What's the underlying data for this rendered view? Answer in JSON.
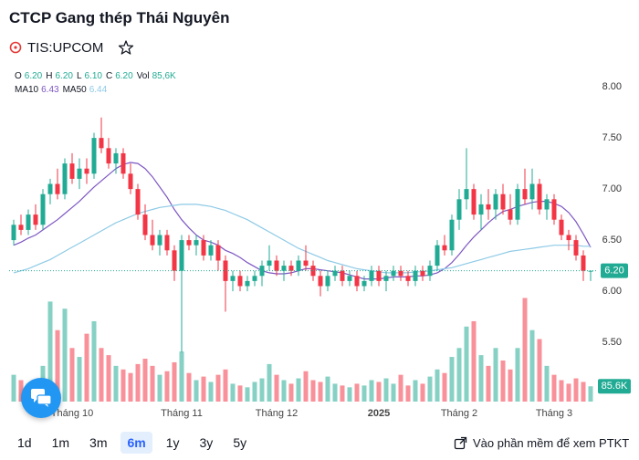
{
  "header": {
    "title": "CTCP Gang thép Thái Nguyên",
    "symbol": "TIS:UPCOM"
  },
  "chart_data": {
    "type": "candlestick",
    "categories": [
      null,
      null,
      null,
      null,
      null,
      null,
      null,
      null,
      "Tháng 10",
      null,
      null,
      null,
      null,
      null,
      null,
      null,
      null,
      null,
      null,
      null,
      null,
      null,
      null,
      "Tháng 11",
      null,
      null,
      null,
      null,
      null,
      null,
      null,
      null,
      null,
      null,
      null,
      null,
      "Tháng 12",
      null,
      null,
      null,
      null,
      null,
      null,
      null,
      null,
      null,
      null,
      null,
      null,
      null,
      "2025",
      null,
      null,
      null,
      null,
      null,
      null,
      null,
      null,
      null,
      null,
      "Tháng 2",
      null,
      null,
      null,
      null,
      null,
      null,
      null,
      null,
      null,
      null,
      null,
      null,
      "Tháng 3",
      null,
      null,
      null,
      null,
      null
    ],
    "open": [
      6.5,
      6.65,
      6.6,
      6.75,
      6.65,
      6.95,
      7.05,
      6.95,
      7.25,
      7.1,
      7.2,
      7.15,
      7.5,
      7.4,
      7.25,
      7.35,
      7.15,
      7.0,
      6.75,
      6.55,
      6.45,
      6.55,
      6.4,
      6.2,
      6.5,
      6.45,
      6.5,
      6.35,
      6.45,
      6.3,
      6.1,
      6.15,
      6.05,
      6.1,
      6.15,
      6.25,
      6.3,
      6.2,
      6.25,
      6.2,
      6.3,
      6.25,
      6.15,
      6.05,
      6.15,
      6.2,
      6.1,
      6.15,
      6.05,
      6.1,
      6.2,
      6.1,
      6.15,
      6.2,
      6.15,
      6.1,
      6.2,
      6.15,
      6.25,
      6.45,
      6.4,
      6.7,
      6.9,
      7.0,
      6.75,
      6.85,
      6.8,
      6.95,
      6.8,
      6.7,
      7.0,
      6.9,
      7.05,
      6.8,
      6.9,
      6.7,
      6.55,
      6.5,
      6.35,
      6.2
    ],
    "high": [
      6.7,
      6.75,
      6.8,
      6.85,
      7.0,
      7.1,
      7.2,
      7.3,
      7.35,
      7.3,
      7.3,
      7.55,
      7.7,
      7.5,
      7.4,
      7.4,
      7.25,
      7.05,
      6.85,
      6.7,
      6.6,
      6.6,
      6.45,
      6.55,
      6.55,
      6.55,
      6.55,
      6.5,
      6.5,
      6.35,
      6.2,
      6.2,
      6.15,
      6.2,
      6.3,
      6.45,
      6.35,
      6.3,
      6.3,
      6.35,
      6.45,
      6.3,
      6.2,
      6.2,
      6.25,
      6.25,
      6.2,
      6.2,
      6.15,
      6.25,
      6.25,
      6.2,
      6.25,
      6.25,
      6.2,
      6.25,
      6.25,
      6.3,
      6.5,
      6.55,
      6.75,
      7.0,
      7.4,
      7.05,
      6.95,
      7.0,
      7.0,
      7.05,
      6.95,
      7.05,
      7.2,
      7.2,
      7.1,
      6.95,
      6.95,
      6.75,
      6.6,
      6.55,
      6.4,
      6.2
    ],
    "low": [
      6.45,
      6.55,
      6.55,
      6.6,
      6.6,
      6.85,
      6.9,
      6.9,
      7.05,
      7.0,
      7.05,
      7.1,
      7.35,
      7.2,
      7.15,
      7.1,
      6.95,
      6.7,
      6.5,
      6.4,
      6.35,
      6.35,
      6.1,
      5.4,
      6.4,
      6.35,
      6.3,
      6.3,
      6.2,
      5.8,
      6.0,
      6.0,
      6.0,
      6.05,
      6.05,
      6.2,
      6.15,
      6.1,
      6.15,
      6.15,
      6.2,
      6.1,
      5.95,
      6.0,
      6.1,
      6.05,
      6.05,
      6.0,
      6.0,
      6.05,
      6.05,
      6.0,
      6.1,
      6.1,
      6.05,
      6.05,
      6.1,
      6.1,
      6.2,
      6.35,
      6.35,
      6.6,
      6.8,
      6.7,
      6.6,
      6.7,
      6.7,
      6.75,
      6.65,
      6.65,
      6.85,
      6.8,
      6.75,
      6.7,
      6.65,
      6.5,
      6.4,
      6.3,
      6.1,
      6.1
    ],
    "close": [
      6.65,
      6.6,
      6.75,
      6.65,
      6.95,
      7.05,
      6.95,
      7.25,
      7.1,
      7.2,
      7.15,
      7.5,
      7.4,
      7.25,
      7.35,
      7.15,
      7.0,
      6.75,
      6.55,
      6.45,
      6.55,
      6.4,
      6.2,
      6.5,
      6.45,
      6.5,
      6.35,
      6.45,
      6.3,
      6.1,
      6.15,
      6.05,
      6.1,
      6.15,
      6.25,
      6.3,
      6.2,
      6.25,
      6.2,
      6.3,
      6.25,
      6.15,
      6.05,
      6.15,
      6.2,
      6.1,
      6.15,
      6.05,
      6.1,
      6.2,
      6.1,
      6.15,
      6.2,
      6.15,
      6.1,
      6.2,
      6.15,
      6.25,
      6.45,
      6.4,
      6.7,
      6.9,
      7.0,
      6.75,
      6.85,
      6.8,
      6.95,
      6.8,
      6.7,
      7.0,
      6.9,
      7.05,
      6.8,
      6.9,
      6.7,
      6.55,
      6.5,
      6.35,
      6.2,
      6.2
    ],
    "volume": [
      150000,
      120000,
      100000,
      90000,
      200000,
      560000,
      400000,
      520000,
      300000,
      250000,
      380000,
      450000,
      300000,
      260000,
      200000,
      180000,
      160000,
      210000,
      240000,
      200000,
      150000,
      170000,
      220000,
      280000,
      160000,
      120000,
      140000,
      110000,
      150000,
      180000,
      100000,
      90000,
      80000,
      110000,
      130000,
      210000,
      150000,
      120000,
      100000,
      130000,
      170000,
      120000,
      110000,
      140000,
      100000,
      90000,
      80000,
      100000,
      90000,
      120000,
      110000,
      130000,
      100000,
      150000,
      90000,
      120000,
      100000,
      140000,
      180000,
      160000,
      250000,
      300000,
      420000,
      450000,
      260000,
      200000,
      300000,
      230000,
      180000,
      300000,
      580000,
      400000,
      350000,
      200000,
      150000,
      120000,
      100000,
      130000,
      110000,
      85600
    ],
    "ylim": [
      4.92,
      8.18
    ],
    "yticks": [
      {
        "value": 5.5,
        "label": "5.50"
      },
      {
        "value": 6,
        "label": "6.00"
      },
      {
        "value": 6.5,
        "label": "6.50"
      },
      {
        "value": 7,
        "label": "7.00"
      },
      {
        "value": 7.5,
        "label": "7.50"
      },
      {
        "value": 8,
        "label": "8.00"
      }
    ],
    "y2lim": [
      0,
      700000
    ],
    "up_color": "#22ab94",
    "down_color": "#f23645",
    "ohlc_legend": [
      {
        "key": "O",
        "value": "6.20"
      },
      {
        "key": "H",
        "value": "6.20"
      },
      {
        "key": "L",
        "value": "6.10"
      },
      {
        "key": "C",
        "value": "6.20"
      },
      {
        "key": "Vol",
        "value": "85,6K"
      }
    ],
    "series": [
      {
        "name": "MA10",
        "color": "#7e57c2",
        "legend_value": "6.43",
        "values": [
          6.45,
          6.48,
          6.52,
          6.55,
          6.6,
          6.65,
          6.7,
          6.76,
          6.82,
          6.88,
          6.95,
          7.02,
          7.08,
          7.14,
          7.2,
          7.24,
          7.26,
          7.25,
          7.2,
          7.12,
          7.02,
          6.92,
          6.8,
          6.7,
          6.62,
          6.55,
          6.5,
          6.48,
          6.45,
          6.4,
          6.37,
          6.33,
          6.28,
          6.24,
          6.2,
          6.18,
          6.17,
          6.17,
          6.18,
          6.2,
          6.22,
          6.22,
          6.21,
          6.2,
          6.19,
          6.18,
          6.16,
          6.14,
          6.12,
          6.12,
          6.12,
          6.13,
          6.14,
          6.14,
          6.14,
          6.15,
          6.15,
          6.16,
          6.18,
          6.22,
          6.28,
          6.36,
          6.45,
          6.53,
          6.6,
          6.67,
          6.73,
          6.78,
          6.8,
          6.83,
          6.85,
          6.87,
          6.88,
          6.88,
          6.86,
          6.83,
          6.77,
          6.68,
          6.56,
          6.43
        ]
      },
      {
        "name": "MA50",
        "color": "#8ecae6",
        "legend_value": "6.44",
        "values": [
          6.18,
          6.2,
          6.22,
          6.25,
          6.28,
          6.31,
          6.35,
          6.39,
          6.43,
          6.47,
          6.51,
          6.55,
          6.59,
          6.63,
          6.67,
          6.7,
          6.73,
          6.76,
          6.78,
          6.8,
          6.82,
          6.83,
          6.84,
          6.85,
          6.85,
          6.85,
          6.84,
          6.83,
          6.81,
          6.79,
          6.76,
          6.73,
          6.7,
          6.66,
          6.62,
          6.58,
          6.54,
          6.5,
          6.46,
          6.42,
          6.39,
          6.36,
          6.33,
          6.3,
          6.28,
          6.26,
          6.24,
          6.22,
          6.21,
          6.2,
          6.19,
          6.18,
          6.18,
          6.18,
          6.18,
          6.19,
          6.19,
          6.2,
          6.21,
          6.22,
          6.23,
          6.25,
          6.27,
          6.29,
          6.31,
          6.33,
          6.35,
          6.37,
          6.39,
          6.4,
          6.41,
          6.42,
          6.43,
          6.44,
          6.45,
          6.45,
          6.45,
          6.45,
          6.44,
          6.44
        ]
      }
    ],
    "last_price_label": "6.20",
    "last_volume_label": "85.6K"
  },
  "toolbar": {
    "ranges": [
      "1d",
      "1m",
      "3m",
      "6m",
      "1y",
      "3y",
      "5y"
    ],
    "selected": "6m",
    "link": "Vào phần mềm để xem PTKT"
  }
}
